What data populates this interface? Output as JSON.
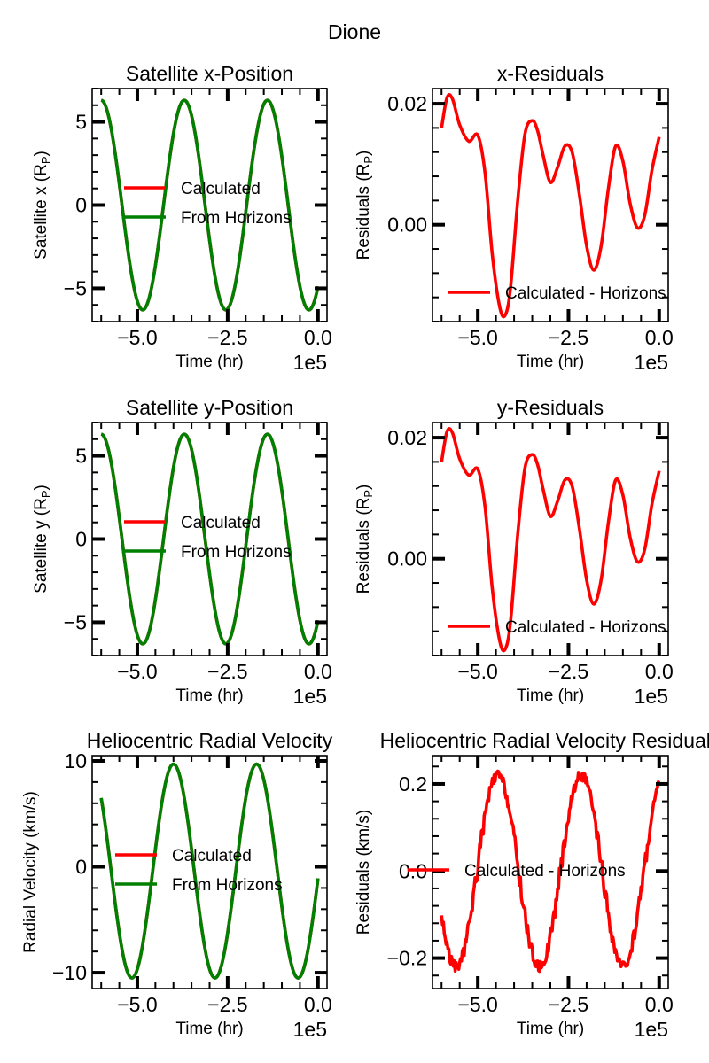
{
  "suptitle": "Dione",
  "colors": {
    "calculated": "#ff0000",
    "horizons": "#008000",
    "residual": "#ff0000"
  },
  "chart_data": [
    {
      "type": "line",
      "title": "Satellite x-Position",
      "xlabel": "Time (hr)",
      "ylabel": "Satellite x (R",
      "ylabel_sub": "P",
      "ylabel_tail": ")",
      "x_exponent": "1e5",
      "xlim": [
        -6.25,
        0.25
      ],
      "ylim": [
        -7.0,
        7.0
      ],
      "xticks": [
        -5.0,
        -2.5,
        0.0
      ],
      "xtick_labels": [
        "−5.0",
        "−2.5",
        "0.0"
      ],
      "yticks": [
        -5,
        0,
        5
      ],
      "ytick_labels": [
        "−5",
        "0",
        "5"
      ],
      "legend_loc": "center-left",
      "model": {
        "kind": "sine",
        "amplitude": 6.3,
        "period": 2.3,
        "x0": -6.0,
        "phase": 1.5708,
        "offset": 0,
        "x_start": -6.0,
        "x_end": 0.0,
        "noise": 0
      },
      "series": [
        {
          "name": "Calculated",
          "color": "#ff0000"
        },
        {
          "name": "From Horizons",
          "color": "#008000"
        }
      ]
    },
    {
      "type": "line",
      "title": "x-Residuals",
      "xlabel": "Time (hr)",
      "ylabel": "Residuals (R",
      "ylabel_sub": "P",
      "ylabel_tail": ")",
      "x_exponent": "1e5",
      "xlim": [
        -6.25,
        0.25
      ],
      "ylim": [
        -0.016,
        0.0225
      ],
      "xticks": [
        -5.0,
        -2.5,
        0.0
      ],
      "xtick_labels": [
        "−5.0",
        "−2.5",
        "0.0"
      ],
      "yticks": [
        0.0,
        0.02
      ],
      "ytick_labels": [
        "0.00",
        "0.02"
      ],
      "legend_loc": "lower-right",
      "series": [
        {
          "name": "Calculated - Horizons",
          "color": "#ff0000",
          "x": [
            -6.0,
            -5.85,
            -5.7,
            -5.5,
            -5.25,
            -5.0,
            -4.8,
            -4.6,
            -4.4,
            -4.25,
            -4.1,
            -3.9,
            -3.7,
            -3.5,
            -3.35,
            -3.2,
            -3.0,
            -2.8,
            -2.6,
            -2.4,
            -2.2,
            -2.0,
            -1.8,
            -1.6,
            -1.4,
            -1.2,
            -1.0,
            -0.8,
            -0.6,
            -0.4,
            -0.2,
            0.0
          ],
          "y": [
            0.016,
            0.021,
            0.0208,
            0.0165,
            0.0138,
            0.0148,
            0.0085,
            -0.005,
            -0.0135,
            -0.015,
            -0.0105,
            0.004,
            0.015,
            0.0172,
            0.0155,
            0.0115,
            0.007,
            0.0095,
            0.013,
            0.012,
            0.005,
            -0.0035,
            -0.0075,
            -0.0035,
            0.006,
            0.013,
            0.0105,
            0.0035,
            -0.0005,
            0.0015,
            0.009,
            0.0145
          ]
        }
      ]
    },
    {
      "type": "line",
      "title": "Satellite y-Position",
      "xlabel": "Time (hr)",
      "ylabel": "Satellite y (R",
      "ylabel_sub": "P",
      "ylabel_tail": ")",
      "x_exponent": "1e5",
      "xlim": [
        -6.25,
        0.25
      ],
      "ylim": [
        -7.0,
        7.0
      ],
      "xticks": [
        -5.0,
        -2.5,
        0.0
      ],
      "xtick_labels": [
        "−5.0",
        "−2.5",
        "0.0"
      ],
      "yticks": [
        -5,
        0,
        5
      ],
      "ytick_labels": [
        "−5",
        "0",
        "5"
      ],
      "legend_loc": "center-left",
      "model": {
        "kind": "sine",
        "amplitude": 6.3,
        "period": 2.3,
        "x0": -6.0,
        "phase": 1.5708,
        "offset": 0,
        "x_start": -6.0,
        "x_end": 0.0,
        "noise": 0
      },
      "series": [
        {
          "name": "Calculated",
          "color": "#ff0000"
        },
        {
          "name": "From Horizons",
          "color": "#008000"
        }
      ]
    },
    {
      "type": "line",
      "title": "y-Residuals",
      "xlabel": "Time (hr)",
      "ylabel": "Residuals (R",
      "ylabel_sub": "P",
      "ylabel_tail": ")",
      "x_exponent": "1e5",
      "xlim": [
        -6.25,
        0.25
      ],
      "ylim": [
        -0.016,
        0.0225
      ],
      "xticks": [
        -5.0,
        -2.5,
        0.0
      ],
      "xtick_labels": [
        "−5.0",
        "−2.5",
        "0.0"
      ],
      "yticks": [
        0.0,
        0.02
      ],
      "ytick_labels": [
        "0.00",
        "0.02"
      ],
      "legend_loc": "lower-right",
      "series": [
        {
          "name": "Calculated - Horizons",
          "color": "#ff0000",
          "x": [
            -6.0,
            -5.85,
            -5.7,
            -5.5,
            -5.25,
            -5.0,
            -4.8,
            -4.6,
            -4.4,
            -4.25,
            -4.1,
            -3.9,
            -3.7,
            -3.5,
            -3.35,
            -3.2,
            -3.0,
            -2.8,
            -2.6,
            -2.4,
            -2.2,
            -2.0,
            -1.8,
            -1.6,
            -1.4,
            -1.2,
            -1.0,
            -0.8,
            -0.6,
            -0.4,
            -0.2,
            0.0
          ],
          "y": [
            0.016,
            0.021,
            0.0208,
            0.0165,
            0.0138,
            0.0148,
            0.0085,
            -0.005,
            -0.0135,
            -0.015,
            -0.0105,
            0.004,
            0.015,
            0.0172,
            0.0155,
            0.0115,
            0.007,
            0.0095,
            0.013,
            0.012,
            0.005,
            -0.0035,
            -0.0075,
            -0.0035,
            0.006,
            0.013,
            0.0105,
            0.0035,
            -0.0005,
            0.0015,
            0.009,
            0.0145
          ]
        }
      ]
    },
    {
      "type": "line",
      "title": "Heliocentric Radial Velocity",
      "xlabel": "Time (hr)",
      "ylabel": "Radial Velocity (km/s)",
      "ylabel_sub": "",
      "ylabel_tail": "",
      "x_exponent": "1e5",
      "xlim": [
        -6.25,
        0.25
      ],
      "ylim": [
        -11.5,
        10.5
      ],
      "xticks": [
        -5.0,
        -2.5,
        0.0
      ],
      "xtick_labels": [
        "−5.0",
        "−2.5",
        "0.0"
      ],
      "yticks": [
        -10,
        0,
        10
      ],
      "ytick_labels": [
        "−10",
        "0",
        "10"
      ],
      "legend_loc": "center-left",
      "model": {
        "kind": "sine",
        "amplitude": 10.1,
        "period": 2.3,
        "x0": -5.15,
        "phase": -1.5708,
        "offset": -0.4,
        "x_start": -6.0,
        "x_end": 0.0,
        "noise": 0
      },
      "series": [
        {
          "name": "Calculated",
          "color": "#ff0000"
        },
        {
          "name": "From Horizons",
          "color": "#008000"
        }
      ]
    },
    {
      "type": "line",
      "title": "Heliocentric Radial Velocity Residuals",
      "xlabel": "Time (hr)",
      "ylabel": "Residuals (km/s)",
      "ylabel_sub": "",
      "ylabel_tail": "",
      "x_exponent": "1e5",
      "xlim": [
        -6.25,
        0.25
      ],
      "ylim": [
        -0.27,
        0.265
      ],
      "xticks": [
        -5.0,
        -2.5,
        0.0
      ],
      "xtick_labels": [
        "−5.0",
        "−2.5",
        "0.0"
      ],
      "yticks": [
        -0.2,
        0.0,
        0.2
      ],
      "ytick_labels": [
        "−0.2",
        "0.0",
        "0.2"
      ],
      "legend_loc": "center",
      "model": {
        "kind": "sine",
        "amplitude": 0.22,
        "period": 2.3,
        "x0": -4.45,
        "phase": 1.5708,
        "offset": 0,
        "x_start": -6.0,
        "x_end": 0.0,
        "noise": 0.02
      },
      "series": [
        {
          "name": "Calculated - Horizons",
          "color": "#ff0000"
        }
      ]
    }
  ]
}
